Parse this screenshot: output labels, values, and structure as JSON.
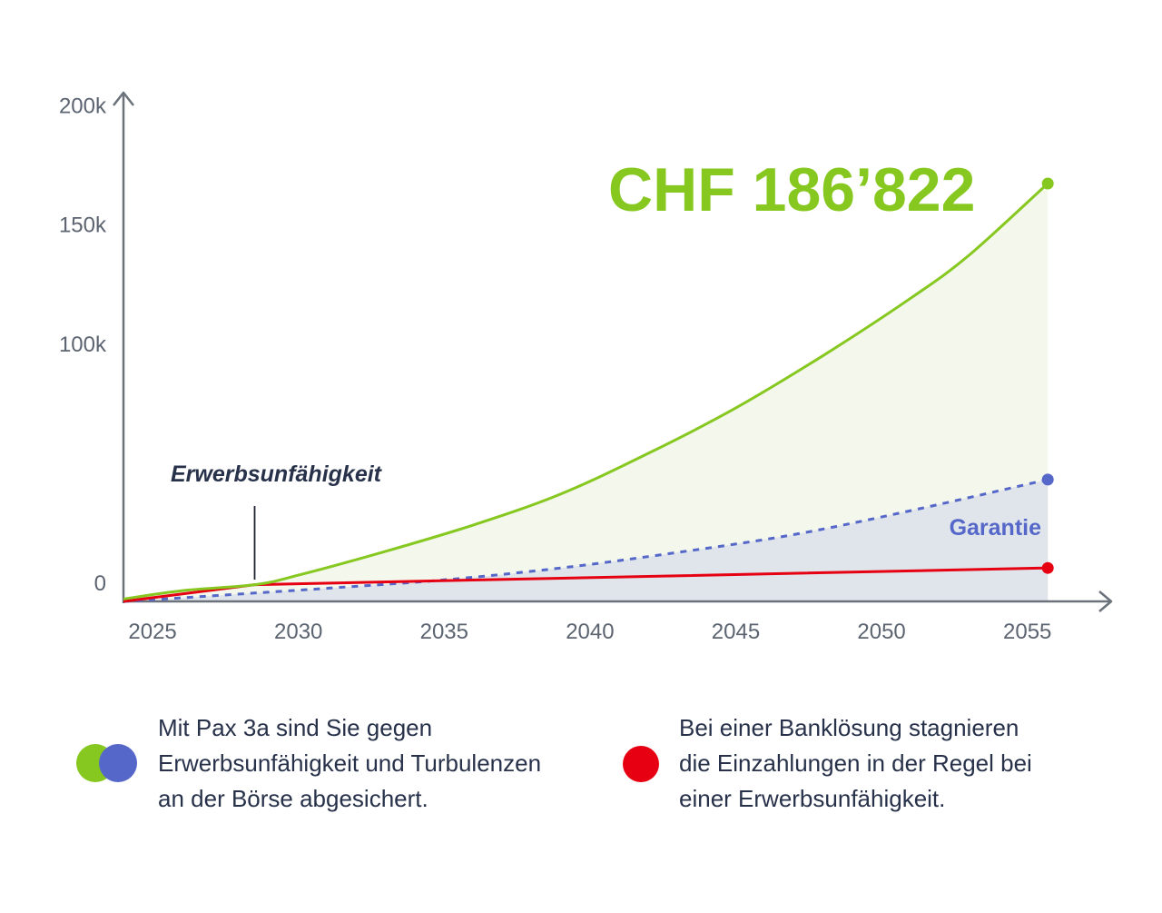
{
  "colors": {
    "green": "#86c81f",
    "blue": "#5567c9",
    "red": "#e60012",
    "axis": "#6b727c",
    "text": "#27314a",
    "green_fill": "#f3f7ec",
    "blue_fill": "#dfe5ea"
  },
  "chart_data": {
    "type": "area",
    "x_ticks": [
      2025,
      2030,
      2035,
      2040,
      2045,
      2050,
      2055
    ],
    "y_ticks": [
      0,
      50000,
      100000,
      150000,
      200000
    ],
    "y_tick_labels": [
      "0",
      "",
      "100k",
      "150k",
      "200k"
    ],
    "xlim": [
      2024,
      2057.5
    ],
    "ylim": [
      0,
      210000
    ],
    "headline": "CHF 186’822",
    "annotation": {
      "label": "Erwerbsunfähigkeit",
      "x": 2028.5
    },
    "series": [
      {
        "key": "pax",
        "style": "solid",
        "color": "green",
        "x": [
          2024,
          2026,
          2028.5,
          2030,
          2033,
          2036,
          2039,
          2042,
          2045,
          2048,
          2051,
          2053,
          2055.7
        ],
        "y": [
          1000,
          4500,
          7000,
          11000,
          21000,
          32000,
          45000,
          62000,
          81000,
          103000,
          127000,
          145000,
          175000
        ],
        "end_marker": true
      },
      {
        "key": "garantie",
        "name": "Garantie",
        "style": "dashed",
        "color": "blue",
        "x": [
          2024,
          2026,
          2028.5,
          2031,
          2035,
          2039,
          2043,
          2047,
          2051,
          2055.7
        ],
        "y": [
          0,
          1500,
          3500,
          5500,
          9000,
          14000,
          20500,
          28000,
          38000,
          51000
        ],
        "end_marker": true
      },
      {
        "key": "bank",
        "style": "solid",
        "color": "red",
        "x": [
          2024,
          2028.5,
          2055.7
        ],
        "y": [
          0,
          7000,
          14000
        ],
        "end_marker": true
      }
    ]
  },
  "legend": {
    "left": "Mit Pax 3a sind Sie gegen\nErwerbsunfähigkeit und Turbulenzen\nan der Börse abgesichert.",
    "right": "Bei einer Banklösung stagnieren\ndie Einzahlungen in der Regel bei\neiner Erwerbsunfähigkeit."
  }
}
